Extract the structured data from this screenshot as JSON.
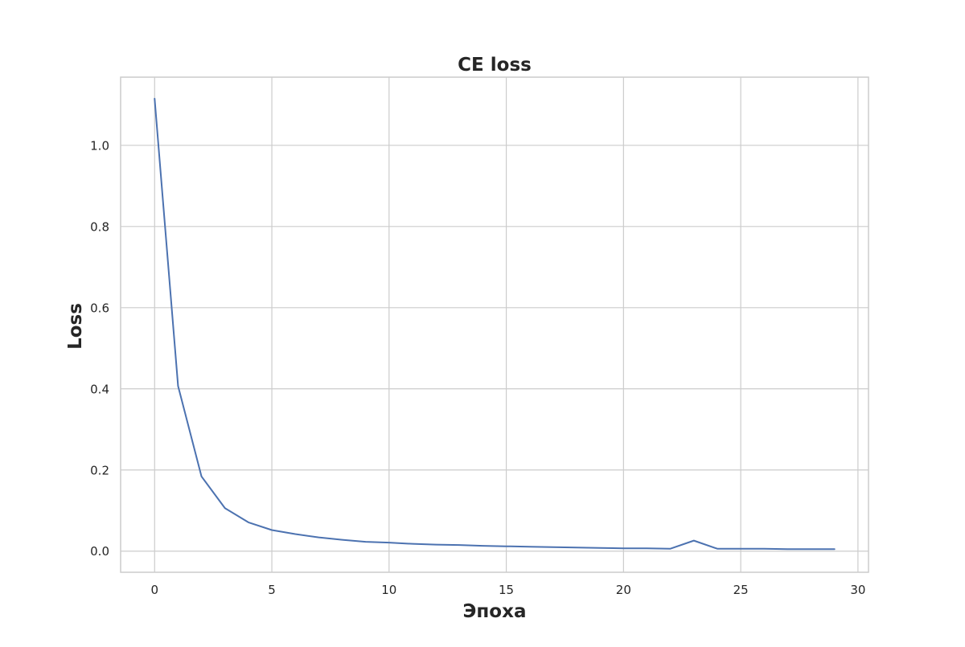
{
  "chart_data": {
    "type": "line",
    "title": "CE loss",
    "xlabel": "Эпоха",
    "ylabel": "Loss",
    "xlim": [
      -1.45,
      30.45
    ],
    "ylim": [
      -0.052,
      1.168
    ],
    "xticks": [
      0,
      5,
      10,
      15,
      20,
      25,
      30
    ],
    "xtick_labels": [
      "0",
      "5",
      "10",
      "15",
      "20",
      "25",
      "30"
    ],
    "yticks": [
      0.0,
      0.2,
      0.4,
      0.6,
      0.8,
      1.0
    ],
    "ytick_labels": [
      "0.0",
      "0.2",
      "0.4",
      "0.6",
      "0.8",
      "1.0"
    ],
    "grid": true,
    "legend": "none",
    "series": [
      {
        "color": "#4c72b0",
        "x": [
          0,
          1,
          2,
          3,
          4,
          5,
          6,
          7,
          8,
          9,
          10,
          11,
          12,
          13,
          14,
          15,
          16,
          17,
          18,
          19,
          20,
          21,
          22,
          23,
          24,
          25,
          26,
          27,
          28,
          29
        ],
        "y": [
          1.115,
          0.407,
          0.184,
          0.106,
          0.071,
          0.052,
          0.042,
          0.034,
          0.028,
          0.023,
          0.021,
          0.018,
          0.016,
          0.015,
          0.013,
          0.012,
          0.011,
          0.01,
          0.009,
          0.008,
          0.007,
          0.007,
          0.006,
          0.026,
          0.006,
          0.006,
          0.006,
          0.005,
          0.005,
          0.005
        ]
      }
    ]
  }
}
